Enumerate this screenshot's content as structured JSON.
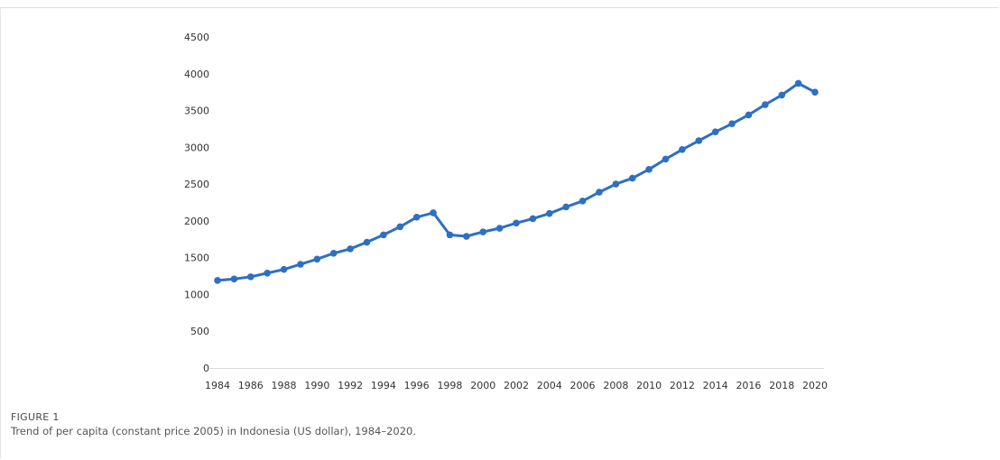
{
  "figure": {
    "label": "FIGURE 1",
    "caption": "Trend of per capita (constant price 2005) in Indonesia (US dollar), 1984–2020."
  },
  "chart_data": {
    "type": "line",
    "title": "",
    "xlabel": "",
    "ylabel": "",
    "ylim": [
      0,
      4500
    ],
    "yticks": [
      0,
      500,
      1000,
      1500,
      2000,
      2500,
      3000,
      3500,
      4000,
      4500
    ],
    "x_tick_labels": [
      "1984",
      "1986",
      "1988",
      "1990",
      "1992",
      "1994",
      "1996",
      "1998",
      "2000",
      "2002",
      "2004",
      "2006",
      "2008",
      "2010",
      "2012",
      "2014",
      "2016",
      "2018",
      "2020"
    ],
    "grid": false,
    "legend": "none",
    "line_color": "#2e6fc3",
    "series": [
      {
        "x": [
          1984,
          1985,
          1986,
          1987,
          1988,
          1989,
          1990,
          1991,
          1992,
          1993,
          1994,
          1995,
          1996,
          1997,
          1998,
          1999,
          2000,
          2001,
          2002,
          2003,
          2004,
          2005,
          2006,
          2007,
          2008,
          2009,
          2010,
          2011,
          2012,
          2013,
          2014,
          2015,
          2016,
          2017,
          2018,
          2019,
          2020
        ],
        "values": [
          1190,
          1210,
          1240,
          1290,
          1340,
          1410,
          1480,
          1560,
          1620,
          1710,
          1810,
          1920,
          2050,
          2110,
          1810,
          1790,
          1850,
          1900,
          1970,
          2030,
          2100,
          2190,
          2270,
          2390,
          2500,
          2580,
          2700,
          2840,
          2970,
          3090,
          3210,
          3320,
          3440,
          3580,
          3710,
          3870,
          3750
        ]
      }
    ]
  }
}
